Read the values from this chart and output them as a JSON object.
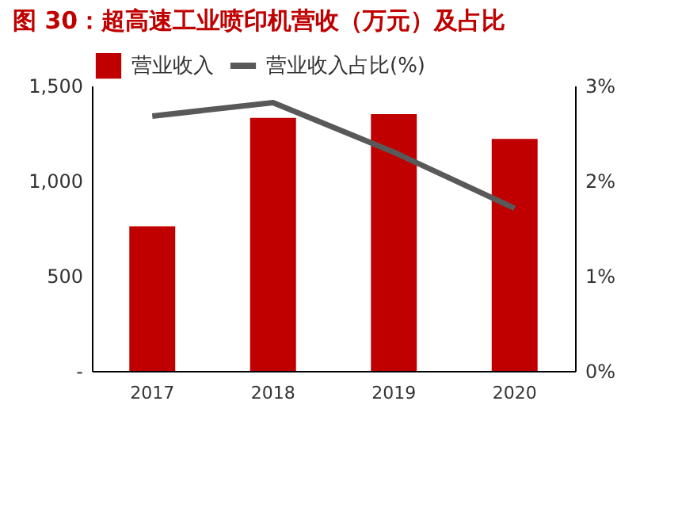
{
  "chart_data": {
    "type": "bar",
    "title": "图 30：超高速工业喷印机营收（万元）及占比",
    "categories": [
      "2017",
      "2018",
      "2019",
      "2020"
    ],
    "series": [
      {
        "name": "营业收入",
        "color": "#c00000",
        "values": [
          760,
          1330,
          1350,
          1220
        ]
      },
      {
        "name": "营业收入占比(%)",
        "type": "line",
        "axis": "y2",
        "color": "#595959",
        "values": [
          2.68,
          2.82,
          2.3,
          1.71
        ]
      }
    ],
    "ylim": [
      0,
      1500
    ],
    "yticks": [
      {
        "value": 0,
        "label": "-"
      },
      500,
      {
        "value": 1000,
        "label": "1,000"
      },
      {
        "value": 1500,
        "label": "1,500"
      }
    ],
    "y2lim": [
      0,
      3
    ],
    "y2ticks": [
      {
        "value": 0,
        "label": "0%"
      },
      {
        "value": 1,
        "label": "1%"
      },
      {
        "value": 2,
        "label": "2%"
      },
      {
        "value": 3,
        "label": "3%"
      }
    ],
    "legend": "top",
    "grid": false,
    "marker": "none",
    "line_style": "solid"
  }
}
